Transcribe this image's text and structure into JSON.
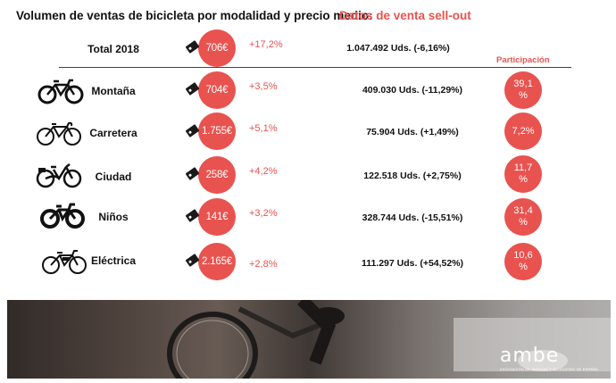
{
  "header": {
    "title": "Volumen de ventas de bicicleta por modalidad y precio medio:",
    "subtitle": "Datos de venta sell-out",
    "participation_label": "Participación"
  },
  "total": {
    "label": "Total 2018",
    "price": "706€",
    "price_change": "+17,2%",
    "units": "1.047.492 Uds. (-6,16%)"
  },
  "categories": [
    {
      "label": "Montaña",
      "icon": "mountain-bike-icon",
      "price": "704€",
      "price_change": "+3,5%",
      "units": "409.030 Uds. (-11,29%)",
      "share": "39,1 %"
    },
    {
      "label": "Carretera",
      "icon": "road-bike-icon",
      "price": "1.755€",
      "price_change": "+5,1%",
      "units": "75.904 Uds. (+1,49%)",
      "share": "7,2%"
    },
    {
      "label": "Ciudad",
      "icon": "city-bike-icon",
      "price": "258€",
      "price_change": "+4,2%",
      "units": "122.518 Uds. (+2,75%)",
      "share": "11,7 %"
    },
    {
      "label": "Niños",
      "icon": "kids-bike-icon",
      "price": "141€",
      "price_change": "+3,2%",
      "units": "328.744 Uds. (-15,51%)",
      "share": "31,4 %"
    },
    {
      "label": "Eléctrica",
      "icon": "electric-bike-icon",
      "price": "2.165€",
      "price_change": "+2,8%",
      "units": "111.297 Uds. (+54,52%)",
      "share": "10,6 %"
    }
  ],
  "logo": {
    "name": "ambe",
    "tagline": "ASOCIACIÓN DE MARCAS Y BICICLETAS DE ESPAÑA"
  },
  "colors": {
    "accent": "#e8534f",
    "text": "#111111"
  }
}
